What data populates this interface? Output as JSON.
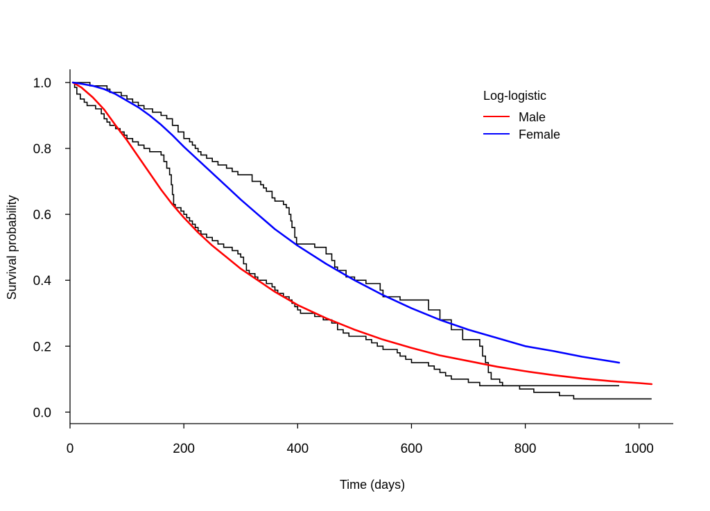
{
  "chart_data": {
    "type": "line",
    "xlabel": "Time (days)",
    "ylabel": "Survival probability",
    "xlim": [
      0,
      1060
    ],
    "ylim": [
      -0.035,
      1.04
    ],
    "xticks": [
      0,
      200,
      400,
      600,
      800,
      1000
    ],
    "yticks": [
      0.0,
      0.2,
      0.4,
      0.6,
      0.8,
      1.0
    ],
    "xtick_labels": [
      "0",
      "200",
      "400",
      "600",
      "800",
      "1000"
    ],
    "ytick_labels": [
      "0.0",
      "0.2",
      "0.4",
      "0.6",
      "0.8",
      "1.0"
    ],
    "grid": false,
    "legend": {
      "title": "Log-logistic",
      "placement": "top-right",
      "entries": [
        {
          "label": "Male",
          "color": "#ff0000"
        },
        {
          "label": "Female",
          "color": "#0000ff"
        }
      ]
    },
    "series": [
      {
        "name": "Male",
        "kind": "fitted",
        "color": "#ff0000",
        "points": [
          [
            5,
            1.0
          ],
          [
            20,
            0.985
          ],
          [
            40,
            0.955
          ],
          [
            60,
            0.918
          ],
          [
            80,
            0.87
          ],
          [
            100,
            0.825
          ],
          [
            120,
            0.775
          ],
          [
            140,
            0.725
          ],
          [
            160,
            0.675
          ],
          [
            180,
            0.63
          ],
          [
            200,
            0.59
          ],
          [
            225,
            0.545
          ],
          [
            250,
            0.505
          ],
          [
            275,
            0.47
          ],
          [
            300,
            0.435
          ],
          [
            330,
            0.4
          ],
          [
            360,
            0.365
          ],
          [
            400,
            0.325
          ],
          [
            450,
            0.285
          ],
          [
            500,
            0.25
          ],
          [
            550,
            0.22
          ],
          [
            600,
            0.195
          ],
          [
            650,
            0.172
          ],
          [
            700,
            0.155
          ],
          [
            750,
            0.138
          ],
          [
            800,
            0.124
          ],
          [
            850,
            0.112
          ],
          [
            900,
            0.102
          ],
          [
            950,
            0.094
          ],
          [
            1000,
            0.088
          ],
          [
            1022,
            0.085
          ]
        ]
      },
      {
        "name": "Female",
        "kind": "fitted",
        "color": "#0000ff",
        "points": [
          [
            5,
            1.0
          ],
          [
            20,
            0.996
          ],
          [
            40,
            0.99
          ],
          [
            60,
            0.98
          ],
          [
            80,
            0.965
          ],
          [
            100,
            0.945
          ],
          [
            120,
            0.925
          ],
          [
            140,
            0.9
          ],
          [
            160,
            0.872
          ],
          [
            180,
            0.84
          ],
          [
            200,
            0.805
          ],
          [
            225,
            0.765
          ],
          [
            250,
            0.725
          ],
          [
            275,
            0.685
          ],
          [
            300,
            0.645
          ],
          [
            330,
            0.6
          ],
          [
            360,
            0.555
          ],
          [
            400,
            0.505
          ],
          [
            450,
            0.45
          ],
          [
            500,
            0.4
          ],
          [
            550,
            0.355
          ],
          [
            600,
            0.315
          ],
          [
            650,
            0.28
          ],
          [
            700,
            0.25
          ],
          [
            750,
            0.225
          ],
          [
            800,
            0.2
          ],
          [
            850,
            0.185
          ],
          [
            900,
            0.168
          ],
          [
            965,
            0.15
          ]
        ]
      },
      {
        "kind": "kaplan-meier",
        "color": "#000000",
        "points": [
          [
            5,
            1.0
          ],
          [
            8,
            0.985
          ],
          [
            12,
            0.965
          ],
          [
            18,
            0.95
          ],
          [
            25,
            0.94
          ],
          [
            30,
            0.93
          ],
          [
            45,
            0.92
          ],
          [
            55,
            0.905
          ],
          [
            60,
            0.89
          ],
          [
            65,
            0.88
          ],
          [
            70,
            0.87
          ],
          [
            80,
            0.86
          ],
          [
            88,
            0.85
          ],
          [
            95,
            0.84
          ],
          [
            100,
            0.83
          ],
          [
            110,
            0.82
          ],
          [
            120,
            0.81
          ],
          [
            130,
            0.8
          ],
          [
            140,
            0.79
          ],
          [
            160,
            0.78
          ],
          [
            165,
            0.76
          ],
          [
            170,
            0.74
          ],
          [
            175,
            0.72
          ],
          [
            178,
            0.69
          ],
          [
            180,
            0.66
          ],
          [
            182,
            0.63
          ],
          [
            185,
            0.62
          ],
          [
            195,
            0.61
          ],
          [
            200,
            0.6
          ],
          [
            205,
            0.59
          ],
          [
            210,
            0.58
          ],
          [
            215,
            0.57
          ],
          [
            220,
            0.56
          ],
          [
            225,
            0.55
          ],
          [
            230,
            0.54
          ],
          [
            240,
            0.53
          ],
          [
            250,
            0.52
          ],
          [
            260,
            0.51
          ],
          [
            270,
            0.5
          ],
          [
            285,
            0.49
          ],
          [
            295,
            0.48
          ],
          [
            300,
            0.47
          ],
          [
            305,
            0.45
          ],
          [
            310,
            0.43
          ],
          [
            315,
            0.42
          ],
          [
            325,
            0.41
          ],
          [
            330,
            0.4
          ],
          [
            345,
            0.39
          ],
          [
            355,
            0.38
          ],
          [
            360,
            0.37
          ],
          [
            365,
            0.36
          ],
          [
            375,
            0.35
          ],
          [
            385,
            0.34
          ],
          [
            390,
            0.33
          ],
          [
            395,
            0.32
          ],
          [
            400,
            0.31
          ],
          [
            405,
            0.3
          ],
          [
            430,
            0.29
          ],
          [
            445,
            0.28
          ],
          [
            460,
            0.27
          ],
          [
            470,
            0.25
          ],
          [
            480,
            0.24
          ],
          [
            490,
            0.23
          ],
          [
            520,
            0.22
          ],
          [
            530,
            0.21
          ],
          [
            540,
            0.2
          ],
          [
            550,
            0.19
          ],
          [
            575,
            0.18
          ],
          [
            580,
            0.17
          ],
          [
            590,
            0.16
          ],
          [
            600,
            0.15
          ],
          [
            630,
            0.14
          ],
          [
            640,
            0.13
          ],
          [
            650,
            0.12
          ],
          [
            660,
            0.11
          ],
          [
            670,
            0.1
          ],
          [
            700,
            0.09
          ],
          [
            720,
            0.08
          ],
          [
            770,
            0.08
          ],
          [
            790,
            0.07
          ],
          [
            815,
            0.06
          ],
          [
            860,
            0.05
          ],
          [
            885,
            0.04
          ],
          [
            1022,
            0.04
          ]
        ]
      },
      {
        "kind": "kaplan-meier",
        "color": "#000000",
        "points": [
          [
            5,
            1.0
          ],
          [
            35,
            0.99
          ],
          [
            65,
            0.98
          ],
          [
            70,
            0.97
          ],
          [
            90,
            0.96
          ],
          [
            100,
            0.95
          ],
          [
            110,
            0.94
          ],
          [
            120,
            0.93
          ],
          [
            130,
            0.92
          ],
          [
            145,
            0.91
          ],
          [
            160,
            0.9
          ],
          [
            170,
            0.89
          ],
          [
            180,
            0.87
          ],
          [
            190,
            0.85
          ],
          [
            200,
            0.83
          ],
          [
            210,
            0.82
          ],
          [
            215,
            0.81
          ],
          [
            220,
            0.8
          ],
          [
            225,
            0.79
          ],
          [
            230,
            0.78
          ],
          [
            240,
            0.77
          ],
          [
            250,
            0.76
          ],
          [
            260,
            0.75
          ],
          [
            275,
            0.74
          ],
          [
            285,
            0.73
          ],
          [
            295,
            0.72
          ],
          [
            320,
            0.7
          ],
          [
            335,
            0.69
          ],
          [
            340,
            0.68
          ],
          [
            345,
            0.67
          ],
          [
            355,
            0.65
          ],
          [
            360,
            0.64
          ],
          [
            375,
            0.63
          ],
          [
            380,
            0.62
          ],
          [
            385,
            0.6
          ],
          [
            388,
            0.58
          ],
          [
            390,
            0.56
          ],
          [
            395,
            0.53
          ],
          [
            398,
            0.51
          ],
          [
            430,
            0.5
          ],
          [
            450,
            0.48
          ],
          [
            460,
            0.46
          ],
          [
            465,
            0.44
          ],
          [
            470,
            0.43
          ],
          [
            485,
            0.41
          ],
          [
            500,
            0.4
          ],
          [
            520,
            0.39
          ],
          [
            545,
            0.37
          ],
          [
            550,
            0.35
          ],
          [
            580,
            0.34
          ],
          [
            630,
            0.31
          ],
          [
            650,
            0.28
          ],
          [
            670,
            0.25
          ],
          [
            690,
            0.22
          ],
          [
            720,
            0.2
          ],
          [
            725,
            0.17
          ],
          [
            730,
            0.15
          ],
          [
            735,
            0.12
          ],
          [
            740,
            0.1
          ],
          [
            755,
            0.09
          ],
          [
            760,
            0.08
          ],
          [
            965,
            0.08
          ]
        ]
      }
    ]
  }
}
